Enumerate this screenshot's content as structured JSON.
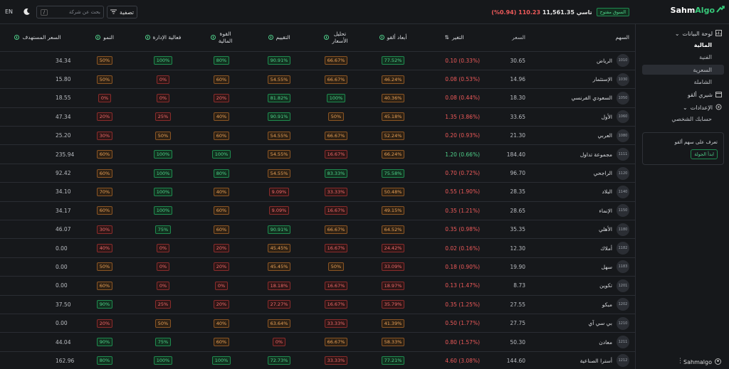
{
  "app": {
    "brand_main": "Sahm",
    "brand_accent": "Algo"
  },
  "topbar": {
    "market_status": "السوق مفتوح",
    "index_name": "تاسي",
    "index_value": "11,561.35",
    "index_change": "110.23 (0.94%)",
    "search_placeholder": "بحث عن شركة",
    "search_shortcut": "/",
    "filter_label": "تصفية",
    "lang": "EN"
  },
  "sidebar": {
    "dashboard": "لوحة البيانات",
    "sub": [
      "المالية",
      "الفنية",
      "السعرية",
      "الشاملة"
    ],
    "algo_picks": "شيري ألقو",
    "settings": "الإعدادات",
    "profile": "حسابك الشخصي",
    "tour_text": "تعرف على سهم ألقو",
    "tour_button": "ابدأ الجولة",
    "user": "Sahmalgo"
  },
  "table": {
    "headers": {
      "stock": "السهم",
      "price": "السعر",
      "change": "التغير",
      "dims": "أبعاد ألقو",
      "analysis1": "تحليل",
      "analysis2": "الأسعار",
      "valuation": "التقييم",
      "power1": "القوة",
      "power2": "المالية",
      "mgmt": "فعالية الإدارة",
      "growth": "النمو",
      "target": "السعر المستهدف"
    },
    "rows": [
      {
        "code": "1010",
        "name": "الرياض",
        "price": "30.65",
        "change": "0.10 (0.33%)",
        "dir": "neg",
        "dims": "77.52%",
        "dims_c": "g",
        "analysis": "66.67%",
        "analysis_c": "o",
        "val": "90.91%",
        "val_c": "g",
        "power": "80%",
        "power_c": "g",
        "mgmt": "100%",
        "mgmt_c": "g",
        "growth": "50%",
        "growth_c": "o",
        "target": "34.34"
      },
      {
        "code": "1030",
        "name": "الإستثمار",
        "price": "14.96",
        "change": "0.08 (0.53%)",
        "dir": "neg",
        "dims": "46.24%",
        "dims_c": "o",
        "analysis": "66.67%",
        "analysis_c": "o",
        "val": "54.55%",
        "val_c": "o",
        "power": "60%",
        "power_c": "o",
        "mgmt": "0%",
        "mgmt_c": "r",
        "growth": "50%",
        "growth_c": "o",
        "target": "15.80"
      },
      {
        "code": "1050",
        "name": "السعودي الفرنسي",
        "price": "18.30",
        "change": "0.08 (0.44%)",
        "dir": "neg",
        "dims": "40.36%",
        "dims_c": "o",
        "analysis": "100%",
        "analysis_c": "g",
        "val": "81.82%",
        "val_c": "g",
        "power": "20%",
        "power_c": "r",
        "mgmt": "0%",
        "mgmt_c": "r",
        "growth": "0%",
        "growth_c": "r",
        "target": "18.55"
      },
      {
        "code": "1060",
        "name": "الأول",
        "price": "33.65",
        "change": "1.35 (3.86%)",
        "dir": "neg",
        "dims": "45.18%",
        "dims_c": "o",
        "analysis": "50%",
        "analysis_c": "o",
        "val": "90.91%",
        "val_c": "g",
        "power": "40%",
        "power_c": "o",
        "mgmt": "25%",
        "mgmt_c": "r",
        "growth": "20%",
        "growth_c": "r",
        "target": "47.34"
      },
      {
        "code": "1080",
        "name": "العربي",
        "price": "21.30",
        "change": "0.20 (0.93%)",
        "dir": "neg",
        "dims": "52.24%",
        "dims_c": "o",
        "analysis": "66.67%",
        "analysis_c": "o",
        "val": "54.55%",
        "val_c": "o",
        "power": "60%",
        "power_c": "o",
        "mgmt": "50%",
        "mgmt_c": "o",
        "growth": "30%",
        "growth_c": "r",
        "target": "25.20"
      },
      {
        "code": "1111",
        "name": "مجموعة تداول",
        "price": "184.40",
        "change": "1.20 (0.66%)",
        "dir": "pos",
        "dims": "66.24%",
        "dims_c": "o",
        "analysis": "16.67%",
        "analysis_c": "r",
        "val": "54.55%",
        "val_c": "o",
        "power": "100%",
        "power_c": "g",
        "mgmt": "100%",
        "mgmt_c": "g",
        "growth": "60%",
        "growth_c": "o",
        "target": "235.94"
      },
      {
        "code": "1120",
        "name": "الراجحي",
        "price": "96.70",
        "change": "0.70 (0.72%)",
        "dir": "neg",
        "dims": "75.58%",
        "dims_c": "g",
        "analysis": "83.33%",
        "analysis_c": "g",
        "val": "54.55%",
        "val_c": "o",
        "power": "80%",
        "power_c": "g",
        "mgmt": "100%",
        "mgmt_c": "g",
        "growth": "60%",
        "growth_c": "o",
        "target": "92.42"
      },
      {
        "code": "1140",
        "name": "البلاد",
        "price": "28.35",
        "change": "0.55 (1.90%)",
        "dir": "neg",
        "dims": "50.48%",
        "dims_c": "o",
        "analysis": "33.33%",
        "analysis_c": "r",
        "val": "9.09%",
        "val_c": "r",
        "power": "40%",
        "power_c": "o",
        "mgmt": "100%",
        "mgmt_c": "g",
        "growth": "70%",
        "growth_c": "o",
        "target": "34.10"
      },
      {
        "code": "1150",
        "name": "الإنماء",
        "price": "28.65",
        "change": "0.35 (1.21%)",
        "dir": "neg",
        "dims": "49.15%",
        "dims_c": "o",
        "analysis": "16.67%",
        "analysis_c": "r",
        "val": "9.09%",
        "val_c": "r",
        "power": "60%",
        "power_c": "o",
        "mgmt": "100%",
        "mgmt_c": "g",
        "growth": "60%",
        "growth_c": "o",
        "target": "34.17"
      },
      {
        "code": "1180",
        "name": "الأهلي",
        "price": "35.35",
        "change": "0.35 (0.98%)",
        "dir": "neg",
        "dims": "64.52%",
        "dims_c": "o",
        "analysis": "66.67%",
        "analysis_c": "o",
        "val": "90.91%",
        "val_c": "g",
        "power": "60%",
        "power_c": "o",
        "mgmt": "75%",
        "mgmt_c": "g",
        "growth": "30%",
        "growth_c": "r",
        "target": "46.07"
      },
      {
        "code": "1182",
        "name": "أملاك",
        "price": "12.30",
        "change": "0.02 (0.16%)",
        "dir": "neg",
        "dims": "24.42%",
        "dims_c": "r",
        "analysis": "16.67%",
        "analysis_c": "r",
        "val": "45.45%",
        "val_c": "o",
        "power": "20%",
        "power_c": "r",
        "mgmt": "0%",
        "mgmt_c": "r",
        "growth": "40%",
        "growth_c": "r",
        "target": "0.00"
      },
      {
        "code": "1183",
        "name": "سهل",
        "price": "19.90",
        "change": "0.18 (0.90%)",
        "dir": "neg",
        "dims": "33.09%",
        "dims_c": "r",
        "analysis": "50%",
        "analysis_c": "o",
        "val": "45.45%",
        "val_c": "o",
        "power": "20%",
        "power_c": "r",
        "mgmt": "0%",
        "mgmt_c": "r",
        "growth": "50%",
        "growth_c": "o",
        "target": "0.00"
      },
      {
        "code": "1201",
        "name": "تكوين",
        "price": "8.73",
        "change": "0.13 (1.47%)",
        "dir": "neg",
        "dims": "18.97%",
        "dims_c": "r",
        "analysis": "16.67%",
        "analysis_c": "r",
        "val": "18.18%",
        "val_c": "r",
        "power": "0%",
        "power_c": "r",
        "mgmt": "0%",
        "mgmt_c": "r",
        "growth": "60%",
        "growth_c": "o",
        "target": "0.00"
      },
      {
        "code": "1202",
        "name": "مبكو",
        "price": "27.55",
        "change": "0.35 (1.25%)",
        "dir": "neg",
        "dims": "35.79%",
        "dims_c": "r",
        "analysis": "16.67%",
        "analysis_c": "r",
        "val": "27.27%",
        "val_c": "r",
        "power": "20%",
        "power_c": "r",
        "mgmt": "25%",
        "mgmt_c": "r",
        "growth": "90%",
        "growth_c": "g",
        "target": "37.50"
      },
      {
        "code": "1210",
        "name": "بي سي آي",
        "price": "27.75",
        "change": "0.50 (1.77%)",
        "dir": "neg",
        "dims": "41.39%",
        "dims_c": "o",
        "analysis": "33.33%",
        "analysis_c": "r",
        "val": "63.64%",
        "val_c": "o",
        "power": "40%",
        "power_c": "o",
        "mgmt": "50%",
        "mgmt_c": "o",
        "growth": "20%",
        "growth_c": "r",
        "target": "0.00"
      },
      {
        "code": "1211",
        "name": "معادن",
        "price": "50.30",
        "change": "0.80 (1.57%)",
        "dir": "neg",
        "dims": "58.33%",
        "dims_c": "o",
        "analysis": "66.67%",
        "analysis_c": "o",
        "val": "0%",
        "val_c": "r",
        "power": "60%",
        "power_c": "o",
        "mgmt": "75%",
        "mgmt_c": "g",
        "growth": "90%",
        "growth_c": "g",
        "target": "44.04"
      },
      {
        "code": "1212",
        "name": "أسترا الصناعية",
        "price": "144.60",
        "change": "4.60 (3.08%)",
        "dir": "neg",
        "dims": "77.21%",
        "dims_c": "g",
        "analysis": "33.33%",
        "analysis_c": "r",
        "val": "72.73%",
        "val_c": "g",
        "power": "100%",
        "power_c": "g",
        "mgmt": "100%",
        "mgmt_c": "g",
        "growth": "80%",
        "growth_c": "g",
        "target": "162.96"
      }
    ]
  }
}
